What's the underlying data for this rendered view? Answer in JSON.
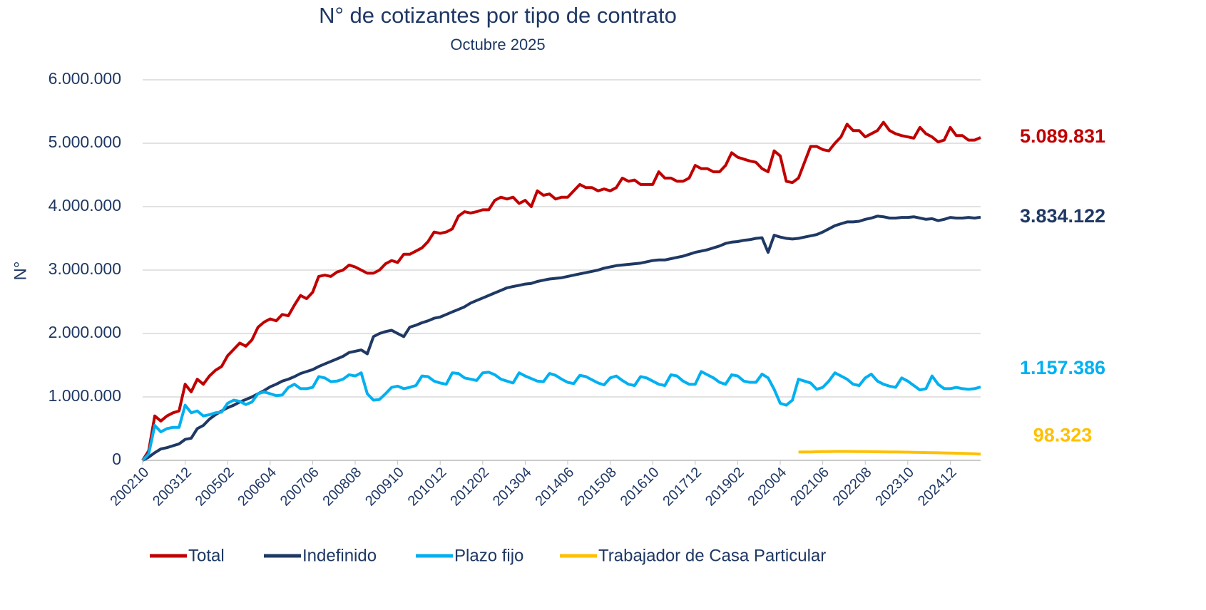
{
  "chart_data": {
    "type": "line",
    "title": "N° de cotizantes por tipo de contrato",
    "subtitle": "Octubre 2025",
    "y_label": "N°",
    "categories": [
      "200210",
      null,
      null,
      null,
      null,
      null,
      null,
      "200312",
      null,
      null,
      null,
      null,
      null,
      null,
      "200502",
      null,
      null,
      null,
      null,
      null,
      null,
      "200604",
      null,
      null,
      null,
      null,
      null,
      null,
      "200706",
      null,
      null,
      null,
      null,
      null,
      null,
      "200808",
      null,
      null,
      null,
      null,
      null,
      null,
      "200910",
      null,
      null,
      null,
      null,
      null,
      null,
      "201012",
      null,
      null,
      null,
      null,
      null,
      null,
      "201202",
      null,
      null,
      null,
      null,
      null,
      null,
      "201304",
      null,
      null,
      null,
      null,
      null,
      null,
      "201406",
      null,
      null,
      null,
      null,
      null,
      null,
      "201508",
      null,
      null,
      null,
      null,
      null,
      null,
      "201610",
      null,
      null,
      null,
      null,
      null,
      null,
      "201712",
      null,
      null,
      null,
      null,
      null,
      null,
      "201902",
      null,
      null,
      null,
      null,
      null,
      null,
      "202004",
      null,
      null,
      null,
      null,
      null,
      null,
      "202106",
      null,
      null,
      null,
      null,
      null,
      null,
      "202208",
      null,
      null,
      null,
      null,
      null,
      null,
      "202310",
      null,
      null,
      null,
      null,
      null,
      null,
      "202412",
      null,
      null,
      null,
      null,
      null
    ],
    "ylim": [
      0,
      6000000
    ],
    "yticks": [
      0,
      {
        "value": 1000000,
        "label": "1.000.000"
      },
      {
        "value": 2000000,
        "label": "2.000.000"
      },
      {
        "value": 3000000,
        "label": "3.000.000"
      },
      {
        "value": 4000000,
        "label": "4.000.000"
      },
      {
        "value": 5000000,
        "label": "5.000.000"
      },
      {
        "value": 6000000,
        "label": "6.000.000"
      }
    ],
    "grid": true,
    "legend": "bottom",
    "series": [
      {
        "name": "Total",
        "color": "#c00000",
        "value_labels": {
          "138": "5.089.831"
        },
        "values": [
          0,
          150000,
          700000,
          620000,
          700000,
          750000,
          780000,
          1200000,
          1080000,
          1280000,
          1200000,
          1330000,
          1420000,
          1480000,
          1650000,
          1750000,
          1850000,
          1800000,
          1900000,
          2100000,
          2180000,
          2230000,
          2200000,
          2300000,
          2280000,
          2450000,
          2600000,
          2550000,
          2650000,
          2900000,
          2920000,
          2900000,
          2970000,
          3000000,
          3080000,
          3050000,
          3000000,
          2950000,
          2950000,
          3000000,
          3100000,
          3150000,
          3120000,
          3250000,
          3250000,
          3300000,
          3350000,
          3450000,
          3600000,
          3580000,
          3600000,
          3650000,
          3850000,
          3920000,
          3900000,
          3920000,
          3950000,
          3950000,
          4100000,
          4150000,
          4120000,
          4150000,
          4050000,
          4100000,
          4000000,
          4250000,
          4180000,
          4200000,
          4120000,
          4150000,
          4150000,
          4250000,
          4350000,
          4300000,
          4300000,
          4250000,
          4280000,
          4250000,
          4300000,
          4450000,
          4400000,
          4420000,
          4350000,
          4350000,
          4350000,
          4550000,
          4450000,
          4450000,
          4400000,
          4400000,
          4450000,
          4650000,
          4600000,
          4600000,
          4550000,
          4550000,
          4650000,
          4850000,
          4780000,
          4750000,
          4720000,
          4700000,
          4600000,
          4550000,
          4880000,
          4800000,
          4400000,
          4380000,
          4450000,
          4700000,
          4950000,
          4950000,
          4900000,
          4880000,
          5000000,
          5100000,
          5300000,
          5200000,
          5200000,
          5100000,
          5150000,
          5200000,
          5330000,
          5200000,
          5150000,
          5120000,
          5100000,
          5080000,
          5250000,
          5150000,
          5100000,
          5020000,
          5050000,
          5250000,
          5120000,
          5120000,
          5050000,
          5050000,
          5089831
        ]
      },
      {
        "name": "Indefinido",
        "color": "#1f3864",
        "value_labels": {
          "138": "3.834.122"
        },
        "values": [
          0,
          50000,
          120000,
          180000,
          200000,
          230000,
          260000,
          330000,
          350000,
          500000,
          550000,
          650000,
          720000,
          780000,
          830000,
          870000,
          920000,
          960000,
          1000000,
          1050000,
          1100000,
          1160000,
          1200000,
          1250000,
          1280000,
          1320000,
          1370000,
          1400000,
          1430000,
          1480000,
          1520000,
          1560000,
          1600000,
          1640000,
          1700000,
          1720000,
          1740000,
          1680000,
          1950000,
          2000000,
          2030000,
          2050000,
          2000000,
          1950000,
          2100000,
          2130000,
          2170000,
          2200000,
          2240000,
          2260000,
          2300000,
          2340000,
          2380000,
          2420000,
          2480000,
          2520000,
          2560000,
          2600000,
          2640000,
          2680000,
          2720000,
          2740000,
          2760000,
          2780000,
          2790000,
          2820000,
          2840000,
          2860000,
          2870000,
          2880000,
          2900000,
          2920000,
          2940000,
          2960000,
          2980000,
          3000000,
          3030000,
          3050000,
          3070000,
          3080000,
          3090000,
          3100000,
          3110000,
          3130000,
          3150000,
          3160000,
          3160000,
          3180000,
          3200000,
          3220000,
          3250000,
          3280000,
          3300000,
          3320000,
          3350000,
          3380000,
          3420000,
          3440000,
          3450000,
          3470000,
          3480000,
          3500000,
          3510000,
          3280000,
          3550000,
          3520000,
          3500000,
          3490000,
          3500000,
          3520000,
          3540000,
          3560000,
          3600000,
          3650000,
          3700000,
          3730000,
          3760000,
          3760000,
          3770000,
          3800000,
          3820000,
          3850000,
          3840000,
          3820000,
          3820000,
          3830000,
          3830000,
          3840000,
          3820000,
          3800000,
          3810000,
          3780000,
          3800000,
          3830000,
          3820000,
          3820000,
          3830000,
          3820000,
          3834122
        ]
      },
      {
        "name": "Plazo fijo",
        "color": "#00b0f0",
        "value_labels": {
          "138": "1.157.386"
        },
        "values": [
          0,
          100000,
          550000,
          450000,
          500000,
          520000,
          520000,
          870000,
          750000,
          780000,
          700000,
          720000,
          750000,
          760000,
          900000,
          950000,
          930000,
          880000,
          920000,
          1050000,
          1080000,
          1050000,
          1020000,
          1030000,
          1150000,
          1200000,
          1130000,
          1130000,
          1150000,
          1320000,
          1300000,
          1240000,
          1250000,
          1280000,
          1350000,
          1330000,
          1380000,
          1050000,
          950000,
          960000,
          1050000,
          1150000,
          1170000,
          1130000,
          1150000,
          1180000,
          1330000,
          1320000,
          1250000,
          1220000,
          1200000,
          1380000,
          1370000,
          1300000,
          1280000,
          1260000,
          1380000,
          1390000,
          1350000,
          1280000,
          1250000,
          1220000,
          1380000,
          1330000,
          1290000,
          1250000,
          1240000,
          1370000,
          1340000,
          1280000,
          1230000,
          1210000,
          1340000,
          1320000,
          1270000,
          1220000,
          1190000,
          1300000,
          1330000,
          1260000,
          1200000,
          1180000,
          1320000,
          1300000,
          1250000,
          1200000,
          1180000,
          1350000,
          1330000,
          1250000,
          1200000,
          1200000,
          1400000,
          1350000,
          1300000,
          1230000,
          1200000,
          1350000,
          1330000,
          1250000,
          1230000,
          1230000,
          1360000,
          1300000,
          1120000,
          900000,
          870000,
          950000,
          1280000,
          1250000,
          1220000,
          1120000,
          1150000,
          1250000,
          1380000,
          1330000,
          1280000,
          1200000,
          1180000,
          1300000,
          1360000,
          1250000,
          1200000,
          1170000,
          1150000,
          1300000,
          1250000,
          1180000,
          1110000,
          1130000,
          1330000,
          1200000,
          1130000,
          1130000,
          1150000,
          1130000,
          1120000,
          1130000,
          1157386
        ]
      },
      {
        "name": "Trabajador de Casa Particular",
        "color": "#ffc000",
        "value_labels": {
          "138": "98.323"
        },
        "values": [
          null,
          null,
          null,
          null,
          null,
          null,
          null,
          null,
          null,
          null,
          null,
          null,
          null,
          null,
          null,
          null,
          null,
          null,
          null,
          null,
          null,
          null,
          null,
          null,
          null,
          null,
          null,
          null,
          null,
          null,
          null,
          null,
          null,
          null,
          null,
          null,
          null,
          null,
          null,
          null,
          null,
          null,
          null,
          null,
          null,
          null,
          null,
          null,
          null,
          null,
          null,
          null,
          null,
          null,
          null,
          null,
          null,
          null,
          null,
          null,
          null,
          null,
          null,
          null,
          null,
          null,
          null,
          null,
          null,
          null,
          null,
          null,
          null,
          null,
          null,
          null,
          null,
          null,
          null,
          null,
          null,
          null,
          null,
          null,
          null,
          null,
          null,
          null,
          null,
          null,
          null,
          null,
          null,
          null,
          null,
          null,
          null,
          null,
          null,
          null,
          null,
          null,
          null,
          null,
          null,
          null,
          null,
          null,
          130000,
          132000,
          133000,
          135000,
          137000,
          138000,
          140000,
          140000,
          140000,
          139000,
          138000,
          137000,
          136000,
          135000,
          134000,
          133000,
          132000,
          130000,
          129000,
          127000,
          125000,
          123000,
          121000,
          119000,
          117000,
          115000,
          112000,
          110000,
          107000,
          104000,
          98323
        ]
      }
    ]
  }
}
